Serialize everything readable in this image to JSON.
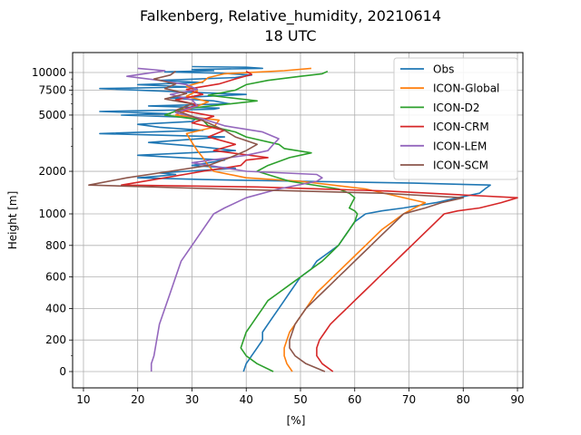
{
  "chart_data": {
    "type": "line",
    "title": "Falkenberg, Relative_humidity, 20210614",
    "subtitle": "18 UTC",
    "xlabel": "[%]",
    "ylabel": "Height [m]",
    "xlim": [
      8,
      91
    ],
    "x_ticks": [
      10,
      20,
      30,
      40,
      50,
      60,
      70,
      80,
      90
    ],
    "y_scale": "piecewise: linear 0-1000 m, logarithmic above 1000 m",
    "y_ticks": [
      {
        "value": 0,
        "label": "0"
      },
      {
        "value": 200,
        "label": "200"
      },
      {
        "value": 400,
        "label": "400"
      },
      {
        "value": 600,
        "label": "600"
      },
      {
        "value": 800,
        "label": "800"
      },
      {
        "value": 1000,
        "label": "1000"
      },
      {
        "value": 2000,
        "label": "2000"
      },
      {
        "value": 5000,
        "label": "5000"
      },
      {
        "value": 7500,
        "label": "7500"
      },
      {
        "value": 10000,
        "label": "10000"
      }
    ],
    "grid": true,
    "legend_position": "top-right",
    "series": [
      {
        "name": "Obs",
        "color": "#1f77b4",
        "points": [
          [
            39.5,
            0
          ],
          [
            40,
            50
          ],
          [
            41,
            100
          ],
          [
            42,
            150
          ],
          [
            43,
            200
          ],
          [
            43,
            250
          ],
          [
            44,
            300
          ],
          [
            45,
            350
          ],
          [
            46,
            400
          ],
          [
            47,
            450
          ],
          [
            48,
            500
          ],
          [
            49,
            550
          ],
          [
            50,
            600
          ],
          [
            52,
            650
          ],
          [
            53,
            700
          ],
          [
            55,
            750
          ],
          [
            57,
            800
          ],
          [
            58,
            850
          ],
          [
            59,
            900
          ],
          [
            60,
            950
          ],
          [
            62,
            1000
          ],
          [
            65,
            1050
          ],
          [
            69,
            1100
          ],
          [
            72,
            1150
          ],
          [
            75,
            1200
          ],
          [
            79,
            1300
          ],
          [
            83,
            1400
          ],
          [
            84,
            1500
          ],
          [
            85,
            1600
          ],
          [
            71,
            1650
          ],
          [
            50,
            1700
          ],
          [
            32,
            1750
          ],
          [
            20,
            1800
          ],
          [
            24,
            1850
          ],
          [
            27,
            1900
          ],
          [
            24,
            1950
          ],
          [
            29,
            2000
          ],
          [
            38,
            2100
          ],
          [
            30,
            2200
          ],
          [
            36,
            2400
          ],
          [
            20,
            2600
          ],
          [
            38,
            2800
          ],
          [
            31,
            3000
          ],
          [
            22,
            3200
          ],
          [
            36,
            3500
          ],
          [
            13,
            3700
          ],
          [
            32,
            3900
          ],
          [
            24,
            4100
          ],
          [
            20,
            4300
          ],
          [
            30,
            4500
          ],
          [
            31,
            4800
          ],
          [
            17,
            5000
          ],
          [
            26,
            5100
          ],
          [
            20,
            5200
          ],
          [
            13,
            5300
          ],
          [
            25,
            5400
          ],
          [
            34,
            5500
          ],
          [
            35,
            5600
          ],
          [
            22,
            5800
          ],
          [
            37,
            6000
          ],
          [
            34,
            6300
          ],
          [
            26,
            6600
          ],
          [
            40,
            7000
          ],
          [
            24,
            7400
          ],
          [
            13,
            7700
          ],
          [
            30,
            7900
          ],
          [
            20,
            8200
          ],
          [
            32,
            8500
          ],
          [
            24,
            8800
          ],
          [
            38,
            9200
          ],
          [
            41,
            9600
          ],
          [
            35,
            9900
          ],
          [
            25,
            10100
          ],
          [
            34,
            10300
          ],
          [
            30,
            10500
          ],
          [
            43,
            10700
          ],
          [
            40,
            10900
          ],
          [
            30,
            11000
          ]
        ]
      },
      {
        "name": "ICON-Global",
        "color": "#ff7f0e",
        "points": [
          [
            48.5,
            0
          ],
          [
            47.5,
            50
          ],
          [
            47,
            100
          ],
          [
            47,
            150
          ],
          [
            47.5,
            200
          ],
          [
            48,
            250
          ],
          [
            49,
            300
          ],
          [
            50,
            350
          ],
          [
            51,
            400
          ],
          [
            52,
            450
          ],
          [
            53,
            500
          ],
          [
            54.5,
            550
          ],
          [
            56,
            600
          ],
          [
            57.5,
            650
          ],
          [
            59,
            700
          ],
          [
            60.5,
            750
          ],
          [
            62,
            800
          ],
          [
            63.5,
            850
          ],
          [
            65,
            900
          ],
          [
            67,
            950
          ],
          [
            69,
            1000
          ],
          [
            71,
            1100
          ],
          [
            73,
            1200
          ],
          [
            62,
            1500
          ],
          [
            50,
            1700
          ],
          [
            40,
            1800
          ],
          [
            34,
            2000
          ],
          [
            33,
            2200
          ],
          [
            32,
            2500
          ],
          [
            31,
            2800
          ],
          [
            30,
            3200
          ],
          [
            29,
            3700
          ],
          [
            34,
            4100
          ],
          [
            35,
            4600
          ],
          [
            27,
            5000
          ],
          [
            30,
            5600
          ],
          [
            33,
            6200
          ],
          [
            29,
            6800
          ],
          [
            31,
            7400
          ],
          [
            29,
            8000
          ],
          [
            32,
            8600
          ],
          [
            33,
            9200
          ],
          [
            36,
            9800
          ],
          [
            47,
            10300
          ],
          [
            52,
            10700
          ]
        ]
      },
      {
        "name": "ICON-D2",
        "color": "#2ca02c",
        "points": [
          [
            45,
            0
          ],
          [
            42,
            50
          ],
          [
            40,
            100
          ],
          [
            39,
            150
          ],
          [
            39.5,
            200
          ],
          [
            40,
            250
          ],
          [
            41,
            300
          ],
          [
            42,
            350
          ],
          [
            43,
            400
          ],
          [
            44,
            450
          ],
          [
            46,
            500
          ],
          [
            48,
            550
          ],
          [
            50,
            600
          ],
          [
            52,
            650
          ],
          [
            54,
            700
          ],
          [
            55.5,
            750
          ],
          [
            57,
            800
          ],
          [
            58,
            850
          ],
          [
            59,
            900
          ],
          [
            60,
            950
          ],
          [
            60.5,
            1000
          ],
          [
            60,
            1050
          ],
          [
            59,
            1100
          ],
          [
            59.5,
            1200
          ],
          [
            60,
            1300
          ],
          [
            59,
            1400
          ],
          [
            57,
            1500
          ],
          [
            48,
            1700
          ],
          [
            42,
            2000
          ],
          [
            44,
            2200
          ],
          [
            48,
            2500
          ],
          [
            52,
            2700
          ],
          [
            47,
            2900
          ],
          [
            46,
            3100
          ],
          [
            40,
            3500
          ],
          [
            38,
            3800
          ],
          [
            33,
            4200
          ],
          [
            32,
            4600
          ],
          [
            25,
            5000
          ],
          [
            28,
            5500
          ],
          [
            37,
            6000
          ],
          [
            42,
            6300
          ],
          [
            33,
            6900
          ],
          [
            38,
            7500
          ],
          [
            40,
            8200
          ],
          [
            44,
            8800
          ],
          [
            50,
            9400
          ],
          [
            54,
            9800
          ],
          [
            55,
            10200
          ]
        ]
      },
      {
        "name": "ICON-CRM",
        "color": "#d62728",
        "points": [
          [
            56,
            0
          ],
          [
            54,
            50
          ],
          [
            53,
            100
          ],
          [
            53,
            150
          ],
          [
            53.5,
            200
          ],
          [
            54.5,
            250
          ],
          [
            55.5,
            300
          ],
          [
            57,
            350
          ],
          [
            58.5,
            400
          ],
          [
            60,
            450
          ],
          [
            61.5,
            500
          ],
          [
            63,
            550
          ],
          [
            64.5,
            600
          ],
          [
            66,
            650
          ],
          [
            67.5,
            700
          ],
          [
            69,
            750
          ],
          [
            70.5,
            800
          ],
          [
            72,
            850
          ],
          [
            73.5,
            900
          ],
          [
            75,
            950
          ],
          [
            76.5,
            1000
          ],
          [
            79,
            1050
          ],
          [
            83,
            1100
          ],
          [
            87,
            1200
          ],
          [
            90,
            1300
          ],
          [
            66,
            1450
          ],
          [
            42,
            1550
          ],
          [
            17,
            1600
          ],
          [
            25,
            1800
          ],
          [
            32,
            2000
          ],
          [
            39,
            2200
          ],
          [
            40,
            2400
          ],
          [
            44,
            2500
          ],
          [
            34,
            2800
          ],
          [
            38,
            3100
          ],
          [
            33,
            3500
          ],
          [
            36,
            3900
          ],
          [
            30,
            4400
          ],
          [
            34,
            4900
          ],
          [
            28,
            5400
          ],
          [
            31,
            5900
          ],
          [
            27,
            6400
          ],
          [
            32,
            7000
          ],
          [
            29,
            7600
          ],
          [
            35,
            8300
          ],
          [
            38,
            9000
          ],
          [
            41,
            9700
          ],
          [
            40,
            10200
          ]
        ]
      },
      {
        "name": "ICON-LEM",
        "color": "#9467bd",
        "points": [
          [
            22.5,
            0
          ],
          [
            22.5,
            50
          ],
          [
            23,
            100
          ],
          [
            23.5,
            200
          ],
          [
            24,
            300
          ],
          [
            25,
            400
          ],
          [
            26,
            500
          ],
          [
            27,
            600
          ],
          [
            28,
            700
          ],
          [
            30,
            800
          ],
          [
            32,
            900
          ],
          [
            34,
            1000
          ],
          [
            36,
            1100
          ],
          [
            40,
            1300
          ],
          [
            46,
            1500
          ],
          [
            53,
            1700
          ],
          [
            54,
            1800
          ],
          [
            53,
            1900
          ],
          [
            40,
            2000
          ],
          [
            30,
            2300
          ],
          [
            40,
            2600
          ],
          [
            44,
            2800
          ],
          [
            45,
            3100
          ],
          [
            46,
            3400
          ],
          [
            43,
            3800
          ],
          [
            36,
            4200
          ],
          [
            32,
            4700
          ],
          [
            27,
            5200
          ],
          [
            31,
            5800
          ],
          [
            30,
            6400
          ],
          [
            26,
            7000
          ],
          [
            31,
            7600
          ],
          [
            29,
            8200
          ],
          [
            24,
            8800
          ],
          [
            18,
            9400
          ],
          [
            22,
            9900
          ],
          [
            25,
            10300
          ],
          [
            20,
            10700
          ]
        ]
      },
      {
        "name": "ICON-SCM",
        "color": "#8c564b",
        "points": [
          [
            54.5,
            0
          ],
          [
            51,
            50
          ],
          [
            49,
            100
          ],
          [
            48,
            150
          ],
          [
            48,
            200
          ],
          [
            48.5,
            250
          ],
          [
            49,
            300
          ],
          [
            50,
            350
          ],
          [
            51,
            400
          ],
          [
            52.5,
            450
          ],
          [
            54,
            500
          ],
          [
            55.5,
            550
          ],
          [
            57,
            600
          ],
          [
            58.5,
            650
          ],
          [
            60,
            700
          ],
          [
            61.5,
            750
          ],
          [
            63,
            800
          ],
          [
            64.5,
            850
          ],
          [
            66,
            900
          ],
          [
            67.5,
            950
          ],
          [
            69,
            1000
          ],
          [
            71,
            1050
          ],
          [
            73,
            1100
          ],
          [
            76,
            1200
          ],
          [
            80,
            1300
          ],
          [
            65,
            1400
          ],
          [
            50,
            1450
          ],
          [
            35,
            1500
          ],
          [
            11,
            1600
          ],
          [
            18,
            1800
          ],
          [
            26,
            2000
          ],
          [
            33,
            2200
          ],
          [
            37,
            2500
          ],
          [
            40,
            2800
          ],
          [
            42,
            3100
          ],
          [
            38,
            3500
          ],
          [
            36,
            3900
          ],
          [
            33,
            4400
          ],
          [
            30,
            4900
          ],
          [
            27,
            5400
          ],
          [
            30,
            6000
          ],
          [
            25,
            6500
          ],
          [
            29,
            7100
          ],
          [
            25,
            7700
          ],
          [
            27,
            8300
          ],
          [
            23,
            9000
          ],
          [
            26,
            9600
          ],
          [
            27,
            10200
          ]
        ]
      }
    ]
  }
}
